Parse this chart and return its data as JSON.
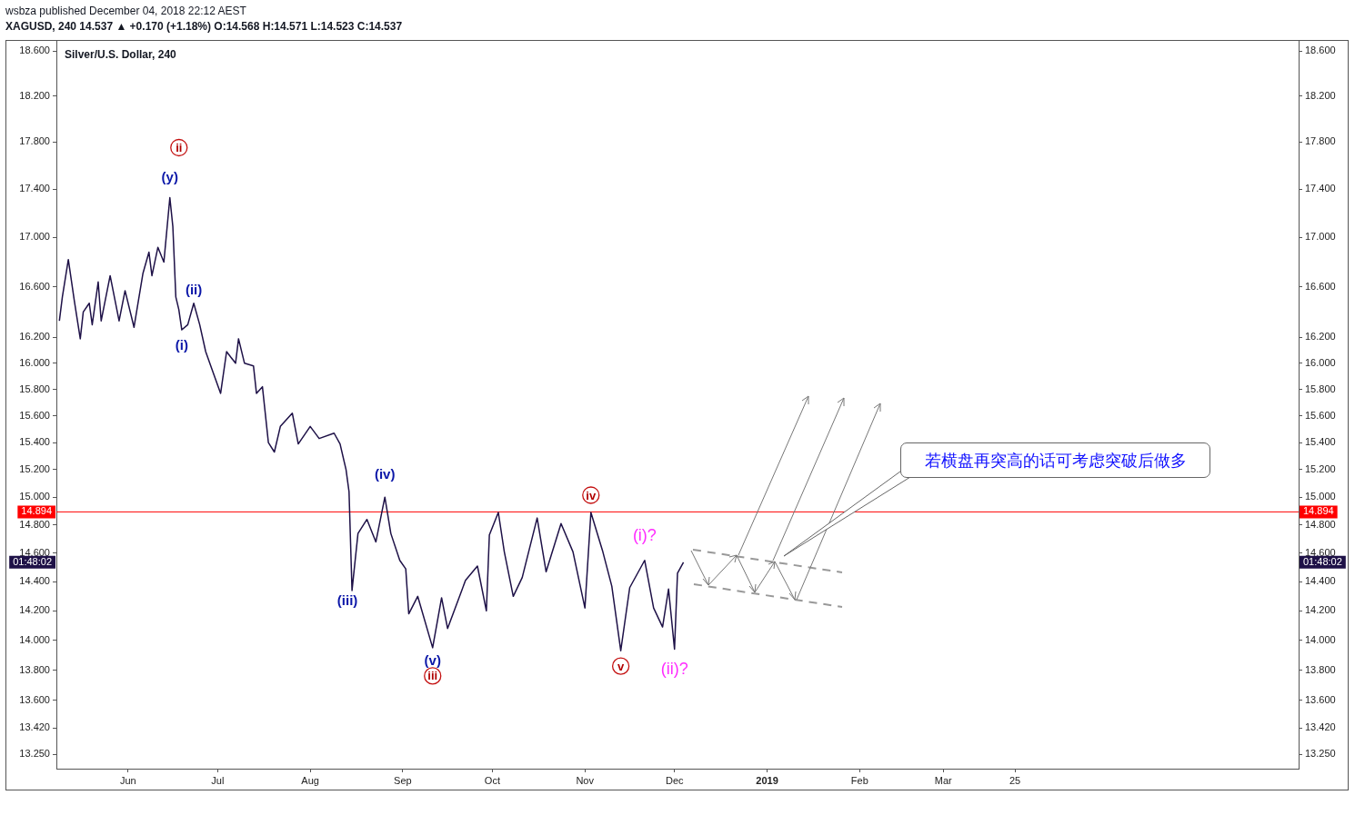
{
  "chart_data": {
    "type": "line",
    "title": "Silver/U.S. Dollar, 240",
    "annotations": [
      "wsbza published December 04, 2018 22:12 AEST",
      "XAGUSD, 240 14.537 ▲ +0.170 (+1.18%) O:14.568 H:14.571 L:14.523 C:14.537",
      "若横盘再突高的话可考虑突破后做多",
      "01:48:02",
      "ii",
      {
        "text": "(y)",
        "x": "2018-06-15",
        "y": 17.33
      },
      {
        "text": "(ii)",
        "x": "2018-06-23",
        "y": 16.47
      },
      {
        "text": "(i)",
        "x": "2018-06-19",
        "y": 16.26
      },
      {
        "text": "(iii)",
        "x": "2018-08-15",
        "y": 14.34
      },
      {
        "text": "(iv)",
        "x": "2018-08-26",
        "y": 15.0
      },
      {
        "text": "(v)",
        "x": "2018-09-11",
        "y": 13.95
      },
      {
        "text": "iii",
        "x": "2018-09-11",
        "y": 13.95
      },
      {
        "text": "iv",
        "x": "2018-11-03",
        "y": 14.89
      },
      {
        "text": "v",
        "x": "2018-11-13",
        "y": 13.93
      },
      {
        "text": "(i)?",
        "x": "2018-11-21",
        "y": 14.55
      },
      {
        "text": "(ii)?",
        "x": "2018-12-01",
        "y": 13.94
      }
    ],
    "x": [
      "2018-05-09",
      "2018-05-10",
      "2018-05-12",
      "2018-05-14",
      "2018-05-16",
      "2018-05-17",
      "2018-05-19",
      "2018-05-20",
      "2018-05-22",
      "2018-05-23",
      "2018-05-26",
      "2018-05-29",
      "2018-05-31",
      "2018-06-03",
      "2018-06-06",
      "2018-06-08",
      "2018-06-09",
      "2018-06-11",
      "2018-06-13",
      "2018-06-15",
      "2018-06-16",
      "2018-06-17",
      "2018-06-18",
      "2018-06-19",
      "2018-06-21",
      "2018-06-23",
      "2018-06-25",
      "2018-06-27",
      "2018-06-29",
      "2018-07-02",
      "2018-07-04",
      "2018-07-07",
      "2018-07-08",
      "2018-07-10",
      "2018-07-13",
      "2018-07-14",
      "2018-07-16",
      "2018-07-18",
      "2018-07-20",
      "2018-07-22",
      "2018-07-26",
      "2018-07-28",
      "2018-08-01",
      "2018-08-04",
      "2018-08-09",
      "2018-08-11",
      "2018-08-13",
      "2018-08-14",
      "2018-08-15",
      "2018-08-17",
      "2018-08-20",
      "2018-08-23",
      "2018-08-26",
      "2018-08-28",
      "2018-08-31",
      "2018-09-02",
      "2018-09-03",
      "2018-09-06",
      "2018-09-11",
      "2018-09-14",
      "2018-09-16",
      "2018-09-22",
      "2018-09-26",
      "2018-09-29",
      "2018-09-30",
      "2018-10-03",
      "2018-10-05",
      "2018-10-08",
      "2018-10-11",
      "2018-10-16",
      "2018-10-19",
      "2018-10-24",
      "2018-10-28",
      "2018-11-01",
      "2018-11-03",
      "2018-11-07",
      "2018-11-10",
      "2018-11-13",
      "2018-11-16",
      "2018-11-21",
      "2018-11-24",
      "2018-11-27",
      "2018-11-29",
      "2018-12-01",
      "2018-12-02",
      "2018-12-04"
    ],
    "series": [
      {
        "color": "#1e1147",
        "values": [
          16.33,
          16.52,
          16.82,
          16.49,
          16.19,
          16.4,
          16.47,
          16.3,
          16.64,
          16.33,
          16.69,
          16.33,
          16.57,
          16.28,
          16.71,
          16.88,
          16.69,
          16.92,
          16.8,
          17.33,
          17.09,
          16.52,
          16.42,
          16.26,
          16.3,
          16.47,
          16.3,
          16.09,
          15.96,
          15.77,
          16.09,
          16.0,
          16.19,
          16.0,
          15.98,
          15.77,
          15.82,
          15.4,
          15.33,
          15.52,
          15.62,
          15.39,
          15.52,
          15.43,
          15.47,
          15.39,
          15.2,
          15.04,
          14.34,
          14.74,
          14.84,
          14.68,
          15.0,
          14.74,
          14.55,
          14.49,
          14.18,
          14.3,
          13.95,
          14.29,
          14.08,
          14.41,
          14.51,
          14.2,
          14.73,
          14.89,
          14.61,
          14.3,
          14.43,
          14.85,
          14.47,
          14.81,
          14.61,
          14.22,
          14.89,
          14.61,
          14.37,
          13.93,
          14.36,
          14.55,
          14.22,
          14.09,
          14.35,
          13.94,
          14.46,
          14.537
        ]
      }
    ],
    "xlim": [
      "2018-05-08",
      "2019-06-28"
    ],
    "xticks": [
      {
        "value": "2018-06-01",
        "label": "Jun"
      },
      {
        "value": "2018-07-01",
        "label": "Jul"
      },
      {
        "value": "2018-08-01",
        "label": "Aug"
      },
      {
        "value": "2018-09-01",
        "label": "Sep"
      },
      {
        "value": "2018-10-01",
        "label": "Oct"
      },
      {
        "value": "2018-11-01",
        "label": "Nov"
      },
      {
        "value": "2018-12-01",
        "label": "Dec"
      },
      {
        "value": "2019-01-01",
        "label": "2019"
      },
      {
        "value": "2019-02-01",
        "label": "Feb"
      },
      {
        "value": "2019-03-01",
        "label": "Mar"
      },
      {
        "value": "2019-03-25",
        "label": "25"
      }
    ],
    "ylim": [
      13.16,
      18.69
    ],
    "yticks": [
      {
        "value": 13.25,
        "label": "13.250"
      },
      {
        "value": 13.42,
        "label": "13.420"
      },
      {
        "value": 13.6,
        "label": "13.600"
      },
      {
        "value": 13.8,
        "label": "13.800"
      },
      {
        "value": 14,
        "label": "14.000"
      },
      {
        "value": 14.2,
        "label": "14.200"
      },
      {
        "value": 14.4,
        "label": "14.400"
      },
      {
        "value": 14.6,
        "label": "14.600"
      },
      {
        "value": 14.8,
        "label": "14.800"
      },
      {
        "value": 15,
        "label": "15.000"
      },
      {
        "value": 15.2,
        "label": "15.200"
      },
      {
        "value": 15.4,
        "label": "15.400"
      },
      {
        "value": 15.6,
        "label": "15.600"
      },
      {
        "value": 15.8,
        "label": "15.800"
      },
      {
        "value": 16,
        "label": "16.000"
      },
      {
        "value": 16.2,
        "label": "16.200"
      },
      {
        "value": 16.6,
        "label": "16.600"
      },
      {
        "value": 17,
        "label": "17.000"
      },
      {
        "value": 17.4,
        "label": "17.400"
      },
      {
        "value": 17.8,
        "label": "17.800"
      },
      {
        "value": 18.2,
        "label": "18.200"
      },
      {
        "value": 18.6,
        "label": "18.600"
      }
    ],
    "log": "y",
    "ref_lines": [
      {
        "axis": "y",
        "value": 14.894,
        "label": "14.894",
        "color": "#ff0000",
        "line_style": "solid"
      }
    ],
    "grid": false,
    "legend": false,
    "marker": "none",
    "line_style": "solid"
  }
}
